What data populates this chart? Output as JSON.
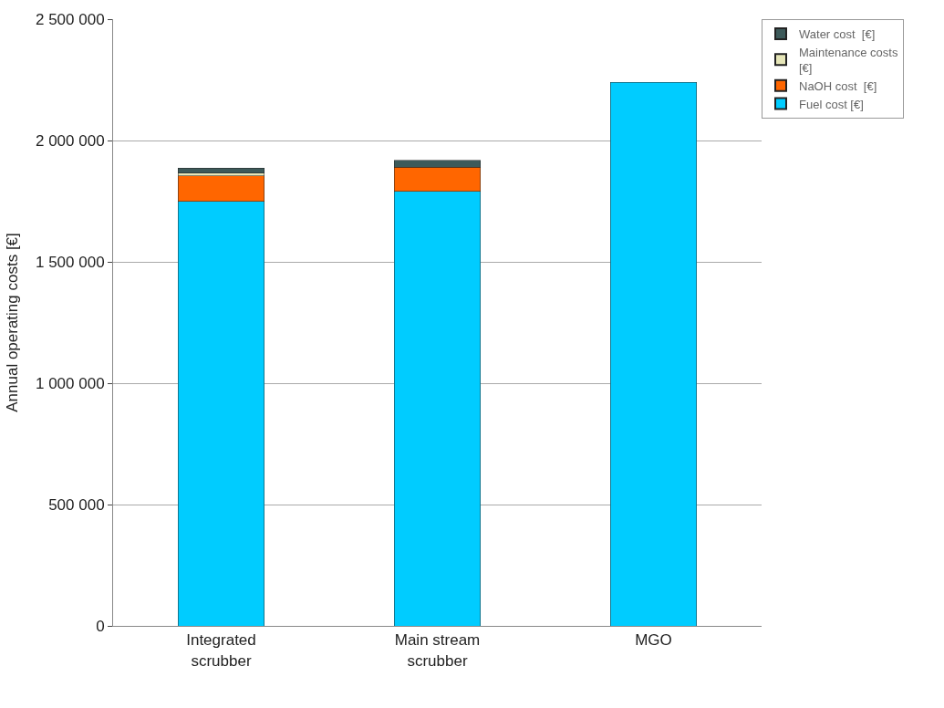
{
  "chart_data": {
    "type": "bar",
    "stacked": true,
    "ylabel": "Annual operating costs [€]",
    "categories": [
      "Integrated scrubber",
      "Main stream scrubber",
      "MGO"
    ],
    "series": [
      {
        "name": "Fuel cost [€]",
        "color": "#00ccff",
        "values": [
          1750000,
          1790000,
          2240000
        ]
      },
      {
        "name": "NaOH cost  [€]",
        "color": "#ff6600",
        "values": [
          105000,
          100000,
          null
        ]
      },
      {
        "name": "Maintenance costs [€]",
        "color": "#e6e6b8",
        "values": [
          10000,
          null,
          null
        ]
      },
      {
        "name": "Water cost  [€]",
        "color": "#3d5a5a",
        "values": [
          22000,
          29000,
          null
        ]
      }
    ],
    "ylim": [
      0,
      2500000
    ],
    "yticks": [
      {
        "value": 0,
        "label": "0"
      },
      {
        "value": 500000,
        "label": "500 000"
      },
      {
        "value": 1000000,
        "label": "1 000 000"
      },
      {
        "value": 1500000,
        "label": "1 500 000"
      },
      {
        "value": 2000000,
        "label": "2 000 000"
      },
      {
        "value": 2500000,
        "label": "2 500 000"
      }
    ],
    "grid": "y",
    "legend": "top right"
  }
}
